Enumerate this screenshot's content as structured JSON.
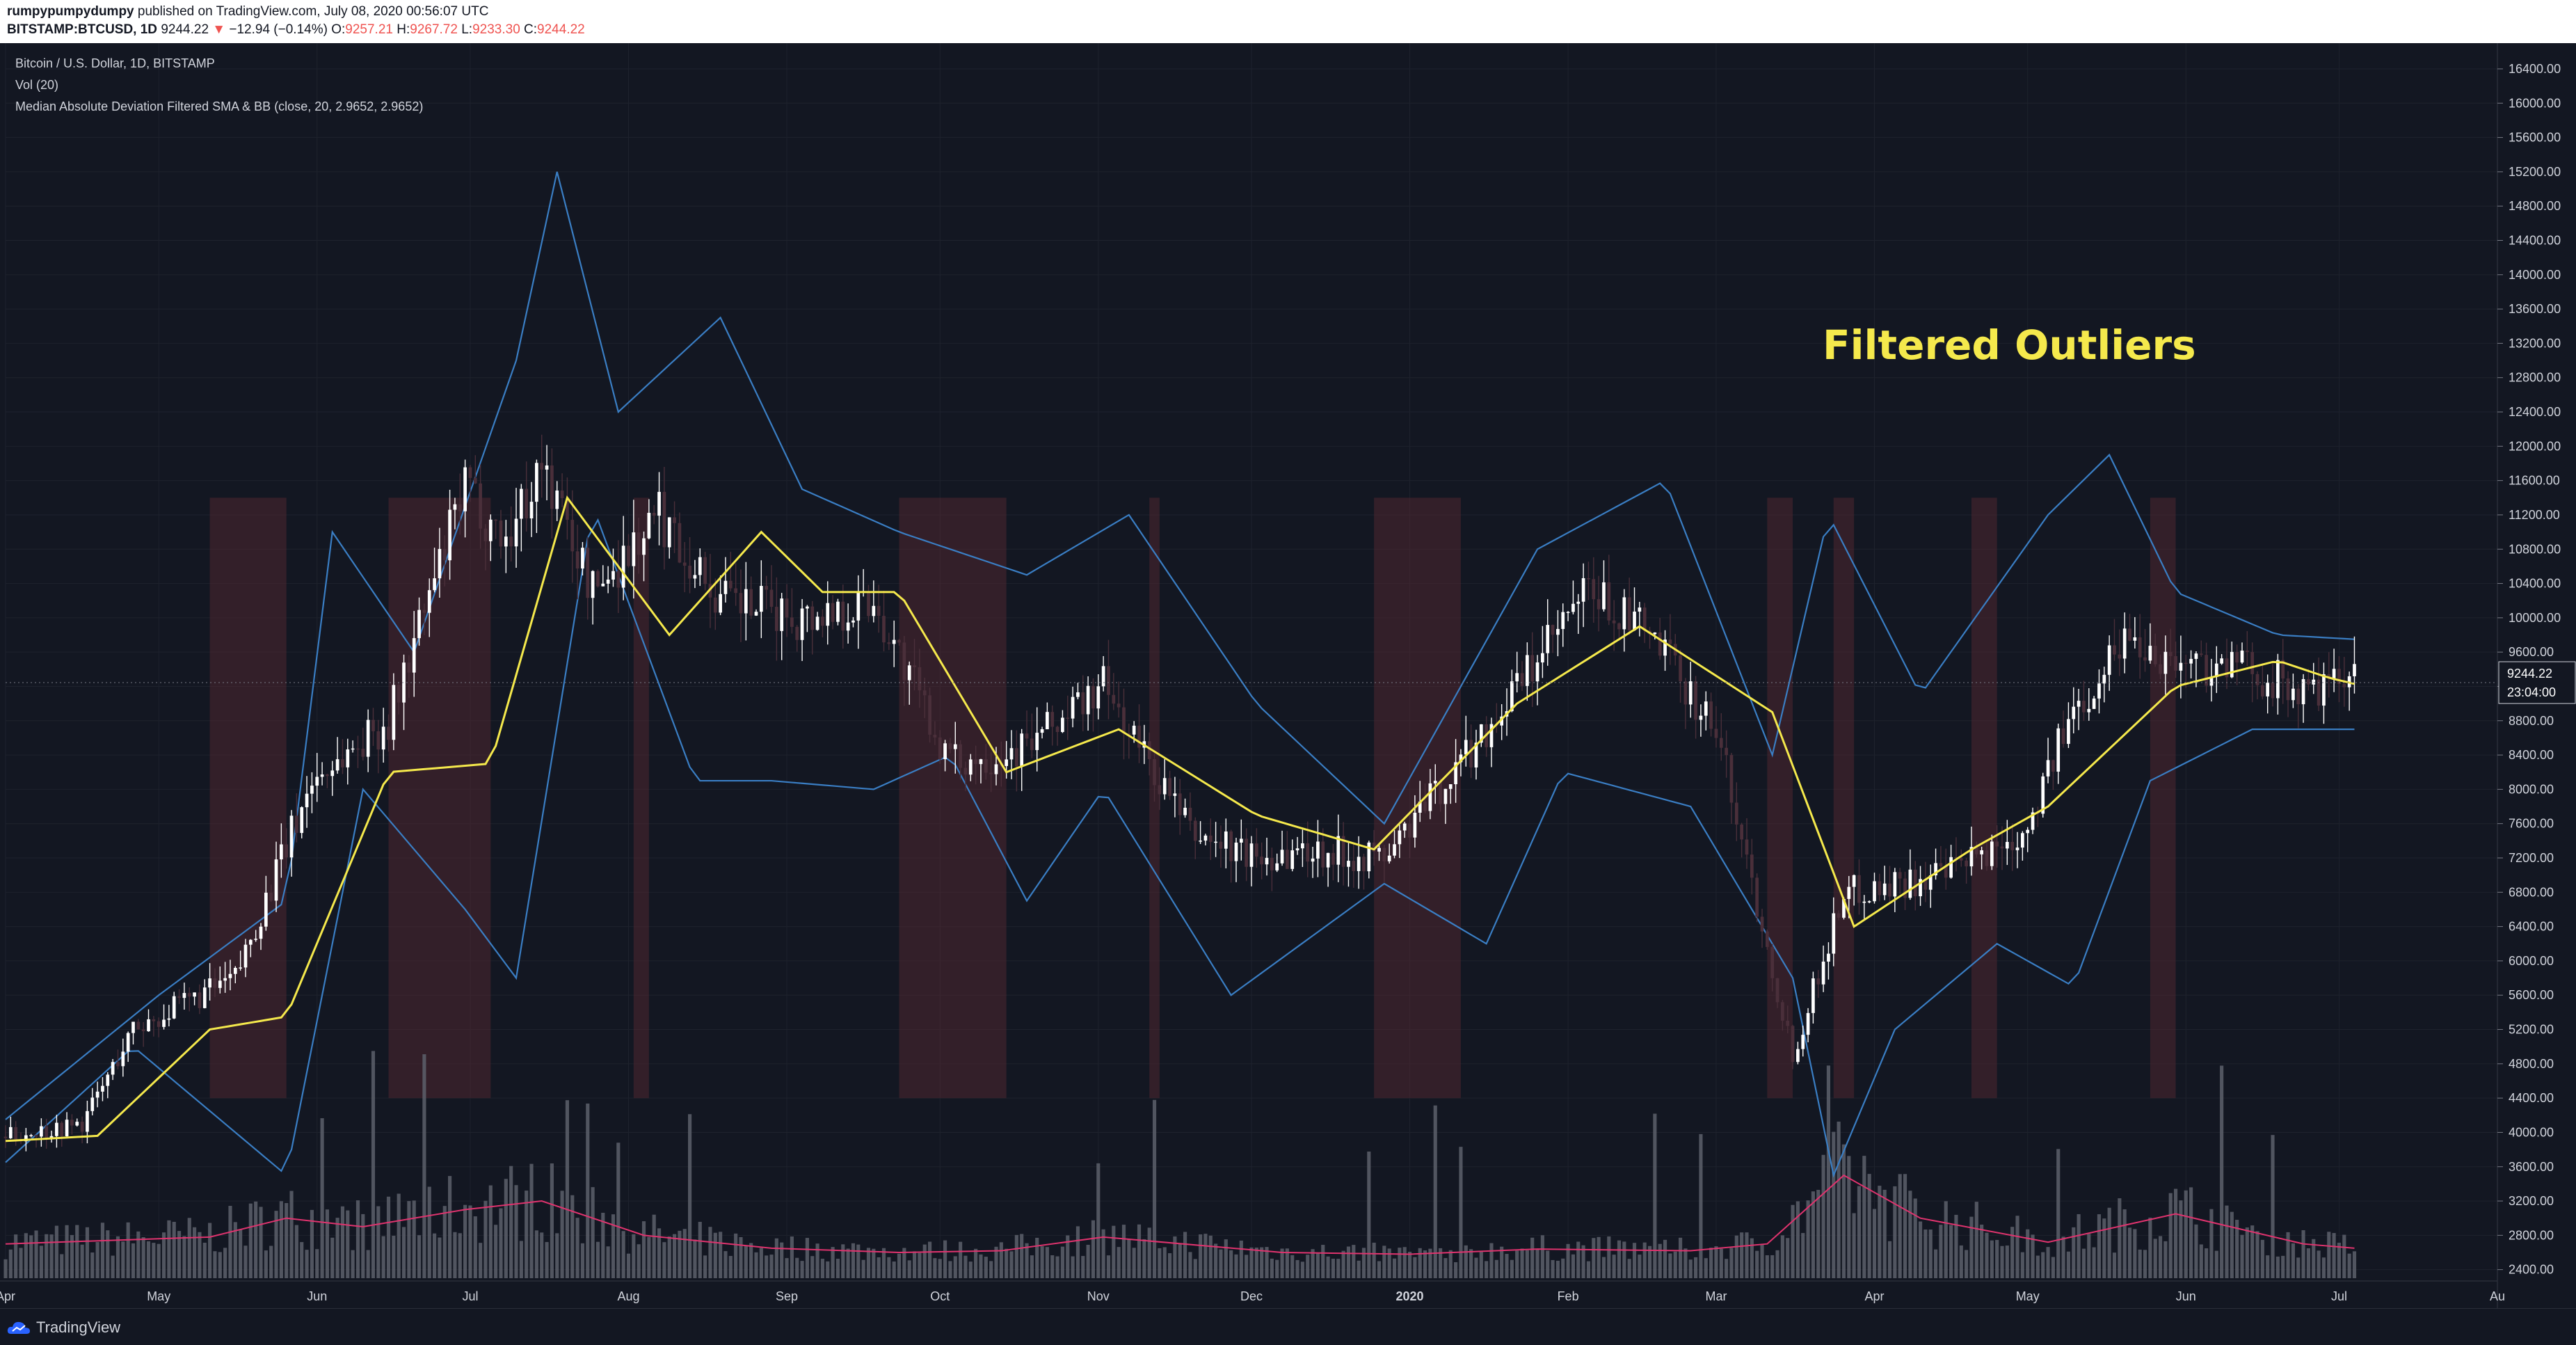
{
  "header": {
    "author": "rumpypumpydumpy",
    "published": "published on TradingView.com, July 08, 2020 00:56:07 UTC",
    "symbol": "BITSTAMP:BTCUSD, 1D",
    "price": "9244.22",
    "change": "−12.94 (−0.14%)",
    "open_label": "O:",
    "open": "9257.21",
    "high_label": "H:",
    "high": "9267.72",
    "low_label": "L:",
    "low": "9233.30",
    "close_label": "C:",
    "close": "9244.22"
  },
  "legend": {
    "title": "Bitcoin / U.S. Dollar, 1D, BITSTAMP",
    "vol": "Vol (20)",
    "indicator": "Median Absolute Deviation Filtered SMA & BB (close, 20, 2.9652, 2.9652)"
  },
  "annotation": "Filtered Outliers",
  "price_tag": "9244.22",
  "countdown": "23:04:00",
  "footer": {
    "logo_text": "TradingView"
  },
  "colors": {
    "background": "#131722",
    "grid": "#1e222d",
    "up_candle": "#ffffff",
    "down_candle": "#4a2f3a",
    "basis": "#f5e94c",
    "bands": "#3a7ec4",
    "volume": "#5d606b",
    "volume_ma": "#e0336e",
    "outlier_zone": "#5a2a32",
    "annotation": "#f5e94c"
  },
  "chart_data": {
    "type": "candlestick",
    "y_axis": {
      "range": [
        2300,
        16700
      ],
      "ticks": [
        2400,
        2800,
        3200,
        3600,
        4000,
        4400,
        4800,
        5200,
        5600,
        6000,
        6400,
        6800,
        7200,
        7600,
        8000,
        8400,
        8800,
        9200,
        9600,
        10000,
        10400,
        10800,
        11200,
        11600,
        12000,
        12400,
        12800,
        13200,
        13600,
        14000,
        14400,
        14800,
        15200,
        15600,
        16000,
        16400
      ],
      "tick_labels": [
        "2400.00",
        "2800.00",
        "3200.00",
        "3600.00",
        "4000.00",
        "4400.00",
        "4800.00",
        "5200.00",
        "5600.00",
        "6000.00",
        "6400.00",
        "6800.00",
        "7200.00",
        "7600.00",
        "8000.00",
        "8400.00",
        "8800.00",
        "9200.00",
        "9600.00",
        "10000.00",
        "10400.00",
        "10800.00",
        "11200.00",
        "11600.00",
        "12000.00",
        "12400.00",
        "12800.00",
        "13200.00",
        "13600.00",
        "14000.00",
        "14400.00",
        "14800.00",
        "15200.00",
        "15600.00",
        "16000.00",
        "16400.00"
      ]
    },
    "x_axis": {
      "labels": [
        "Apr",
        "May",
        "Jun",
        "Jul",
        "Aug",
        "Sep",
        "Oct",
        "Nov",
        "Dec",
        "2020",
        "Feb",
        "Mar",
        "Apr",
        "May",
        "Jun",
        "Jul",
        "Au"
      ],
      "label_days": [
        0,
        30,
        61,
        91,
        122,
        153,
        183,
        214,
        244,
        275,
        306,
        335,
        366,
        396,
        427,
        457,
        488
      ],
      "start": "2019-03-24",
      "total_days": 488
    },
    "series_keypoints": {
      "basis_sma": [
        [
          0,
          3900
        ],
        [
          18,
          3960
        ],
        [
          40,
          5200
        ],
        [
          55,
          5350
        ],
        [
          75,
          8200
        ],
        [
          95,
          8300
        ],
        [
          110,
          11400
        ],
        [
          130,
          9800
        ],
        [
          148,
          11000
        ],
        [
          160,
          10300
        ],
        [
          175,
          10300
        ],
        [
          196,
          8200
        ],
        [
          218,
          8700
        ],
        [
          245,
          7700
        ],
        [
          268,
          7300
        ],
        [
          296,
          9000
        ],
        [
          320,
          9900
        ],
        [
          346,
          8900
        ],
        [
          362,
          6400
        ],
        [
          385,
          7300
        ],
        [
          400,
          7800
        ],
        [
          425,
          9200
        ],
        [
          445,
          9500
        ],
        [
          455,
          9300
        ],
        [
          460,
          9230
        ]
      ],
      "upper_band": [
        [
          0,
          4150
        ],
        [
          30,
          5600
        ],
        [
          55,
          6700
        ],
        [
          64,
          11000
        ],
        [
          80,
          9600
        ],
        [
          100,
          13000
        ],
        [
          108,
          15200
        ],
        [
          120,
          12400
        ],
        [
          140,
          13500
        ],
        [
          156,
          11500
        ],
        [
          175,
          11000
        ],
        [
          200,
          10500
        ],
        [
          220,
          11200
        ],
        [
          245,
          9000
        ],
        [
          270,
          7600
        ],
        [
          300,
          10800
        ],
        [
          325,
          11600
        ],
        [
          346,
          8400
        ],
        [
          357,
          11200
        ],
        [
          375,
          9100
        ],
        [
          400,
          11200
        ],
        [
          412,
          11900
        ],
        [
          425,
          10300
        ],
        [
          445,
          9800
        ],
        [
          460,
          9750
        ]
      ],
      "lower_band": [
        [
          0,
          3650
        ],
        [
          25,
          5000
        ],
        [
          55,
          3500
        ],
        [
          70,
          8000
        ],
        [
          90,
          6600
        ],
        [
          100,
          5800
        ],
        [
          115,
          11300
        ],
        [
          135,
          8100
        ],
        [
          150,
          8100
        ],
        [
          170,
          8000
        ],
        [
          185,
          8400
        ],
        [
          200,
          6700
        ],
        [
          215,
          8000
        ],
        [
          240,
          5600
        ],
        [
          270,
          6900
        ],
        [
          290,
          6200
        ],
        [
          305,
          8200
        ],
        [
          330,
          7800
        ],
        [
          350,
          5800
        ],
        [
          358,
          3500
        ],
        [
          370,
          5200
        ],
        [
          390,
          6200
        ],
        [
          405,
          5700
        ],
        [
          420,
          8100
        ],
        [
          440,
          8700
        ],
        [
          460,
          8700
        ]
      ],
      "close_trend": [
        [
          0,
          3950
        ],
        [
          15,
          4100
        ],
        [
          25,
          5200
        ],
        [
          45,
          5800
        ],
        [
          60,
          8100
        ],
        [
          75,
          8800
        ],
        [
          90,
          11500
        ],
        [
          98,
          10900
        ],
        [
          105,
          11800
        ],
        [
          115,
          10300
        ],
        [
          128,
          11200
        ],
        [
          140,
          10200
        ],
        [
          156,
          10000
        ],
        [
          170,
          10200
        ],
        [
          185,
          8300
        ],
        [
          200,
          8500
        ],
        [
          215,
          9200
        ],
        [
          232,
          7500
        ],
        [
          245,
          7200
        ],
        [
          255,
          7300
        ],
        [
          270,
          7200
        ],
        [
          290,
          8700
        ],
        [
          310,
          10300
        ],
        [
          322,
          9800
        ],
        [
          335,
          8700
        ],
        [
          350,
          4900
        ],
        [
          360,
          6800
        ],
        [
          380,
          7000
        ],
        [
          395,
          7500
        ],
        [
          405,
          8900
        ],
        [
          415,
          9800
        ],
        [
          425,
          9500
        ],
        [
          440,
          9400
        ],
        [
          450,
          9100
        ],
        [
          460,
          9240
        ]
      ],
      "volume_ma": [
        [
          0,
          2700
        ],
        [
          40,
          2780
        ],
        [
          55,
          3000
        ],
        [
          70,
          2900
        ],
        [
          90,
          3100
        ],
        [
          105,
          3200
        ],
        [
          125,
          2800
        ],
        [
          150,
          2650
        ],
        [
          175,
          2600
        ],
        [
          195,
          2620
        ],
        [
          215,
          2780
        ],
        [
          250,
          2600
        ],
        [
          275,
          2580
        ],
        [
          300,
          2640
        ],
        [
          330,
          2620
        ],
        [
          345,
          2700
        ],
        [
          360,
          3500
        ],
        [
          375,
          3000
        ],
        [
          400,
          2720
        ],
        [
          425,
          3050
        ],
        [
          450,
          2700
        ],
        [
          460,
          2650
        ]
      ]
    },
    "outlier_zones": [
      [
        40,
        55
      ],
      [
        75,
        95
      ],
      [
        123,
        126
      ],
      [
        175,
        196
      ],
      [
        224,
        226
      ],
      [
        268,
        285
      ],
      [
        345,
        350
      ],
      [
        358,
        362
      ],
      [
        385,
        390
      ],
      [
        420,
        425
      ]
    ]
  }
}
